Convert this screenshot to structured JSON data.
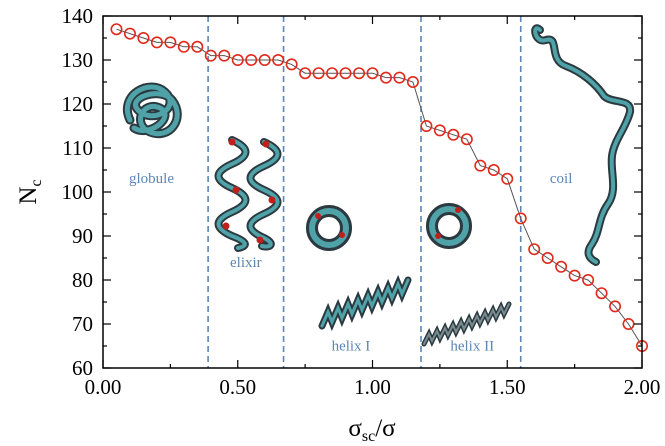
{
  "chart_data": {
    "type": "scatter",
    "xlabel": "σ_sc/σ",
    "xlabel_main": "σ",
    "xlabel_sub": "sc",
    "xlabel_tail": "/σ",
    "ylabel": "N_c",
    "ylabel_main": "N",
    "ylabel_sub": "c",
    "xlim": [
      0.0,
      2.0
    ],
    "ylim": [
      60,
      140
    ],
    "xticks": [
      0.0,
      0.5,
      1.0,
      1.5,
      2.0
    ],
    "xtick_labels": [
      "0.00",
      "0.50",
      "1.00",
      "1.50",
      "2.00"
    ],
    "yticks": [
      60,
      70,
      80,
      90,
      100,
      110,
      120,
      130,
      140
    ],
    "ytick_labels": [
      "60",
      "70",
      "80",
      "90",
      "100",
      "110",
      "120",
      "130",
      "140"
    ],
    "grid": false,
    "marker": "open-circle",
    "marker_color": "#e0291c",
    "line_color": "#555555",
    "boundary_color": "#5b86b5",
    "boundaries": [
      0.39,
      0.67,
      1.18,
      1.55
    ],
    "regions": [
      {
        "label": "globule",
        "x": 0.18,
        "y": 102
      },
      {
        "label": "elixir",
        "x": 0.53,
        "y": 83
      },
      {
        "label": "helix I",
        "x": 0.92,
        "y": 64
      },
      {
        "label": "helix II",
        "x": 1.37,
        "y": 64
      },
      {
        "label": "coil",
        "x": 1.7,
        "y": 102
      }
    ],
    "series": [
      {
        "x": [
          0.05,
          0.1,
          0.15,
          0.2,
          0.25,
          0.3,
          0.35,
          0.4,
          0.45,
          0.5,
          0.55,
          0.6,
          0.65,
          0.7,
          0.75,
          0.8,
          0.85,
          0.9,
          0.95,
          1.0,
          1.05,
          1.1,
          1.15,
          1.2,
          1.25,
          1.3,
          1.35,
          1.4,
          1.45,
          1.5,
          1.55,
          1.6,
          1.65,
          1.7,
          1.75,
          1.8,
          1.85,
          1.9,
          1.95,
          2.0
        ],
        "values": [
          137,
          136,
          135,
          134,
          134,
          133,
          133,
          131,
          131,
          130,
          130,
          130,
          130,
          129,
          127,
          127,
          127,
          127,
          127,
          127,
          126,
          126,
          125,
          115,
          114,
          113,
          112,
          106,
          105,
          103,
          94,
          87,
          85,
          83,
          81,
          80,
          77,
          74,
          70,
          65
        ]
      }
    ]
  }
}
